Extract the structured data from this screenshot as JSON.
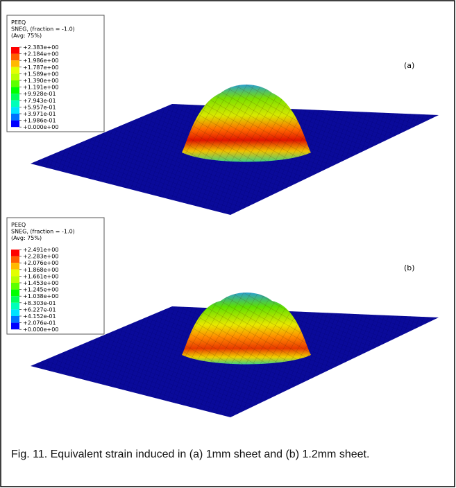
{
  "panels": [
    {
      "label": "(a)",
      "legend": {
        "title": [
          "PEEQ",
          "SNEG, (fraction = -1.0)",
          "(Avg: 75%)"
        ],
        "labels": [
          "+2.383e+00",
          "+2.184e+00",
          "+1.986e+00",
          "+1.787e+00",
          "+1.589e+00",
          "+1.390e+00",
          "+1.191e+00",
          "+9.928e-01",
          "+7.943e-01",
          "+5.957e-01",
          "+3.971e-01",
          "+1.986e-01",
          "+0.000e+00"
        ]
      }
    },
    {
      "label": "(b)",
      "legend": {
        "title": [
          "PEEQ",
          "SNEG, (fraction = -1.0)",
          "(Avg: 75%)"
        ],
        "labels": [
          "+2.491e+00",
          "+2.283e+00",
          "+2.076e+00",
          "+1.868e+00",
          "+1.661e+00",
          "+1.453e+00",
          "+1.245e+00",
          "+1.038e+00",
          "+8.303e-01",
          "+6.227e-01",
          "+4.152e-01",
          "+2.076e-01",
          "+0.000e+00"
        ]
      }
    }
  ],
  "legend_colors": [
    "#ff0000",
    "#ff5d00",
    "#ffb900",
    "#e3ff00",
    "#b9ff00",
    "#5cff00",
    "#00ff00",
    "#00ff5c",
    "#00ffb9",
    "#00e3ff",
    "#0072ff",
    "#0000ff"
  ],
  "caption": "Fig. 11. Equivalent strain induced in (a) 1mm sheet and (b) 1.2mm sheet."
}
